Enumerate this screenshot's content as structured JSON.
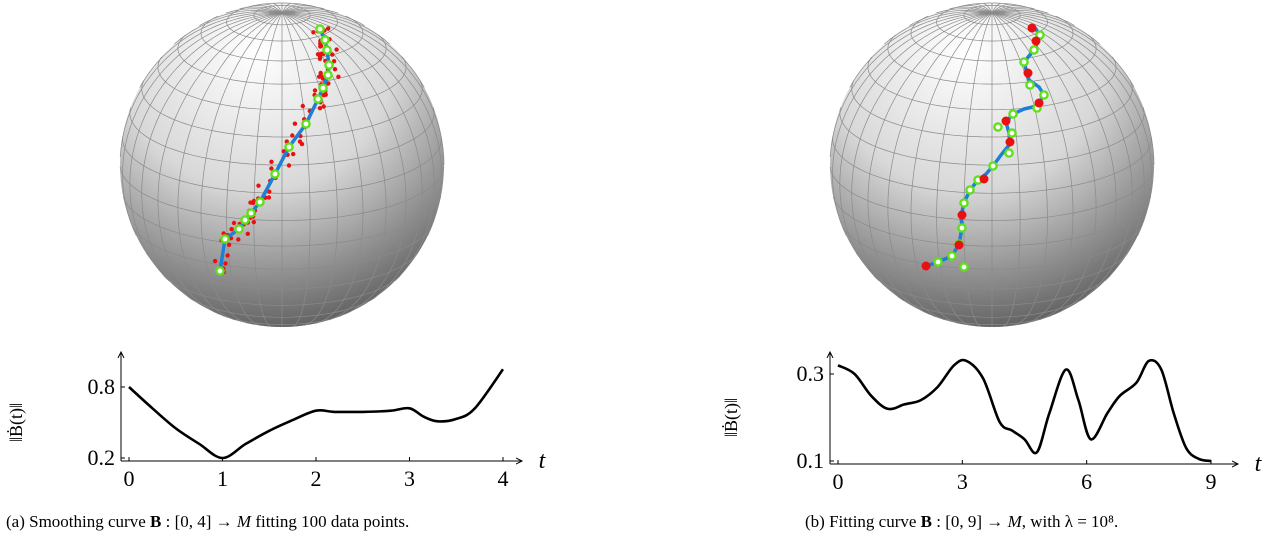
{
  "panels": [
    {
      "id": "a",
      "caption": {
        "prefix": "(a) Smoothing curve ",
        "symbol": "B",
        "domain": " : [0, 4] → ",
        "manifold": "M",
        "suffix": " fitting 100 data points."
      }
    },
    {
      "id": "b",
      "caption": {
        "prefix": "(b) Fitting curve ",
        "symbol": "B",
        "domain": " : [0, 9] → ",
        "manifold": "M",
        "suffix": ", with λ = 10⁸."
      }
    }
  ],
  "colors": {
    "curve": "#1e7fd6",
    "control_point_ring": "#5ee01a",
    "data_point": "#e81010",
    "plot_line": "#000000"
  },
  "chart_data": [
    {
      "type": "line",
      "panel": "a",
      "x": [
        0,
        0.25,
        0.5,
        0.75,
        1.0,
        1.25,
        1.5,
        1.75,
        2.0,
        2.2,
        2.5,
        2.8,
        3.0,
        3.15,
        3.3,
        3.5,
        3.7,
        4.0
      ],
      "series": [
        {
          "values": [
            0.8,
            0.62,
            0.45,
            0.32,
            0.2,
            0.32,
            0.43,
            0.52,
            0.6,
            0.59,
            0.59,
            0.6,
            0.62,
            0.55,
            0.51,
            0.53,
            0.62,
            0.95
          ]
        }
      ],
      "xticks": [
        "0",
        "1",
        "2",
        "3",
        "4"
      ],
      "yticks": [
        "0.2",
        "0.8"
      ],
      "xlim": [
        0,
        4
      ],
      "ylim": [
        0.2,
        0.8
      ],
      "xlabel": "t",
      "ylabel": "‖Ḃ(t)‖",
      "grid": false
    },
    {
      "type": "line",
      "panel": "b",
      "x": [
        0,
        0.4,
        0.8,
        1.2,
        1.6,
        2.0,
        2.4,
        2.8,
        3.1,
        3.5,
        3.9,
        4.2,
        4.5,
        4.8,
        5.1,
        5.5,
        5.8,
        6.1,
        6.5,
        6.8,
        7.2,
        7.5,
        7.8,
        8.1,
        8.4,
        8.7,
        9.0
      ],
      "series": [
        {
          "values": [
            0.32,
            0.3,
            0.25,
            0.22,
            0.23,
            0.24,
            0.27,
            0.32,
            0.33,
            0.29,
            0.19,
            0.17,
            0.15,
            0.12,
            0.21,
            0.31,
            0.24,
            0.15,
            0.21,
            0.25,
            0.28,
            0.33,
            0.31,
            0.21,
            0.13,
            0.105,
            0.1
          ]
        }
      ],
      "xticks": [
        "0",
        "3",
        "6",
        "9"
      ],
      "yticks": [
        "0.1",
        "0.3"
      ],
      "xlim": [
        0,
        9
      ],
      "ylim": [
        0.1,
        0.3
      ],
      "xlabel": "t",
      "ylabel": "‖Ḃ(t)‖",
      "grid": false
    }
  ]
}
